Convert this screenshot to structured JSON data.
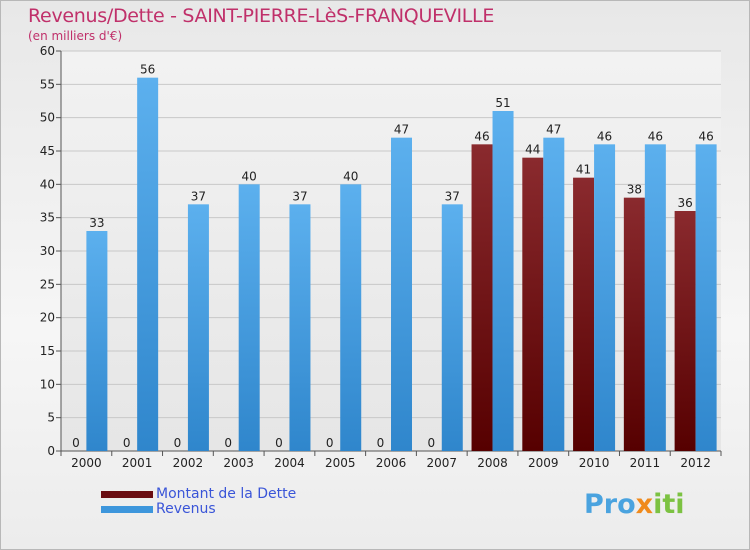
{
  "header": {
    "title": "Revenus/Dette - SAINT-PIERRE-LèS-FRANQUEVILLE",
    "subtitle": "(en milliers d'€)"
  },
  "logo": {
    "parts": [
      "Pro",
      "x",
      "iti"
    ]
  },
  "colors": {
    "dette": "#7a1a1e",
    "revenus": "#4ea3e6",
    "axis_text": "#222222",
    "grid": "#c8c8c8"
  },
  "chart_data": {
    "type": "bar",
    "categories": [
      "2000",
      "2001",
      "2002",
      "2003",
      "2004",
      "2005",
      "2006",
      "2007",
      "2008",
      "2009",
      "2010",
      "2011",
      "2012"
    ],
    "series": [
      {
        "name": "Montant de la Dette",
        "values": [
          0,
          0,
          0,
          0,
          0,
          0,
          0,
          0,
          46,
          44,
          41,
          38,
          36
        ]
      },
      {
        "name": "Revenus",
        "values": [
          33,
          56,
          37,
          40,
          37,
          40,
          47,
          37,
          51,
          47,
          46,
          46,
          46
        ]
      }
    ],
    "ylim": [
      0,
      60
    ],
    "yticks": [
      0,
      5,
      10,
      15,
      20,
      25,
      30,
      35,
      40,
      45,
      50,
      55,
      60
    ],
    "grid": true,
    "legend_position": "bottom-left"
  }
}
